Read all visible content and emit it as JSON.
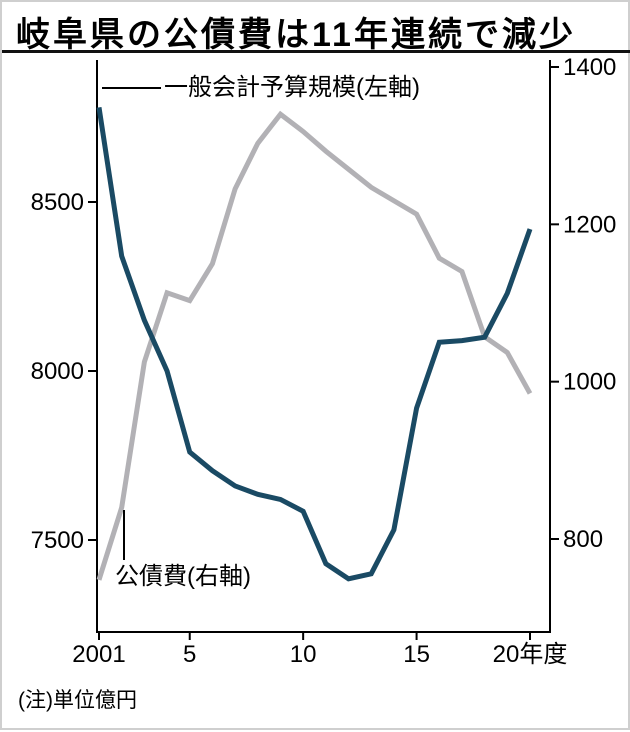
{
  "title": "岐阜県の公債費は11年連続で減少",
  "note": "(注)単位億円",
  "chart_data": {
    "type": "line",
    "title": "岐阜県の公債費は11年連続で減少",
    "unit": "億円",
    "x_years": [
      2001,
      2002,
      2003,
      2004,
      2005,
      2006,
      2007,
      2008,
      2009,
      2010,
      2011,
      2012,
      2013,
      2014,
      2015,
      2016,
      2017,
      2018,
      2019,
      2020
    ],
    "series": [
      {
        "name": "一般会計予算規模(左軸)",
        "axis": "left",
        "color": "#1a4a64",
        "values": [
          8780,
          8340,
          8150,
          8000,
          7760,
          7705,
          7660,
          7635,
          7620,
          7585,
          7430,
          7385,
          7400,
          7530,
          7890,
          8085,
          8090,
          8100,
          8230,
          8420
        ]
      },
      {
        "name": "公債費(右軸)",
        "axis": "right",
        "color": "#b2b1b5",
        "values": [
          748,
          840,
          1025,
          1113,
          1103,
          1150,
          1245,
          1303,
          1340,
          1318,
          1293,
          1270,
          1247,
          1230,
          1213,
          1157,
          1140,
          1057,
          1037,
          985
        ]
      }
    ],
    "left_axis": {
      "ticks": [
        "8500",
        "8000",
        "7500"
      ],
      "tick_values": [
        8500,
        8000,
        7500
      ],
      "approx_range": [
        7250,
        8900
      ]
    },
    "right_axis": {
      "ticks": [
        "1400",
        "1200",
        "1000",
        "800"
      ],
      "tick_values": [
        1400,
        1200,
        1000,
        800
      ],
      "approx_range": [
        690,
        1400
      ]
    },
    "x_axis": {
      "tick_values": [
        2001,
        2005,
        2010,
        2015,
        2020
      ],
      "tick_labels": [
        "2001",
        "5",
        "10",
        "15",
        "20年度"
      ]
    },
    "legend_position": "annotated-on-chart",
    "grid": false
  }
}
